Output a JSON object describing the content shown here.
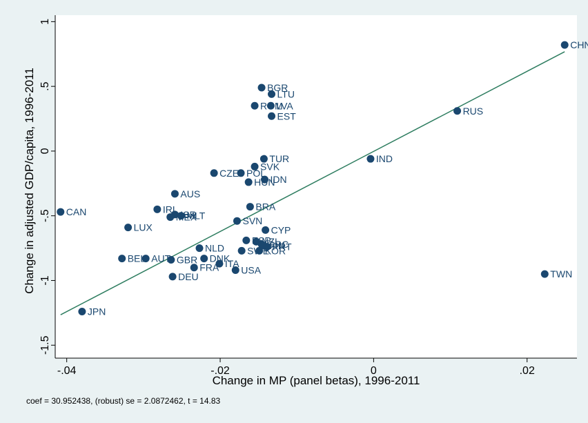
{
  "chart_data": {
    "type": "scatter",
    "xlabel": "Change in MP (panel betas), 1996-2011",
    "ylabel": "Change in adjusted GDP/capita, 1996-2011",
    "xlim": [
      -0.0415,
      0.0265
    ],
    "ylim": [
      -1.6,
      1.05
    ],
    "x_ticks": [
      -0.04,
      -0.02,
      0,
      0.02
    ],
    "x_tick_labels": [
      "-.04",
      "-.02",
      "0",
      ".02"
    ],
    "y_ticks": [
      1,
      0.5,
      0,
      -0.5,
      -1,
      -1.5
    ],
    "y_tick_labels": [
      "1",
      ".5",
      "0",
      "-.5",
      "-1",
      "-1.5"
    ],
    "grid": false,
    "colors": {
      "marker": "#1a476f",
      "fit_line": "#2e7d60",
      "plot_bg": "#ffffff",
      "outer_bg": "#eaf2f3"
    },
    "points": [
      {
        "label": "CHN",
        "x": 0.0249,
        "y": 0.82
      },
      {
        "label": "RUS",
        "x": 0.0109,
        "y": 0.31
      },
      {
        "label": "IND",
        "x": -0.0004,
        "y": -0.06
      },
      {
        "label": "TWN",
        "x": 0.0223,
        "y": -0.95
      },
      {
        "label": "BGR",
        "x": -0.0146,
        "y": 0.49
      },
      {
        "label": "LTU",
        "x": -0.0133,
        "y": 0.44
      },
      {
        "label": "ROM",
        "x": -0.0155,
        "y": 0.35
      },
      {
        "label": "LVA",
        "x": -0.0134,
        "y": 0.35
      },
      {
        "label": "EST",
        "x": -0.0133,
        "y": 0.27
      },
      {
        "label": "TUR",
        "x": -0.0143,
        "y": -0.06
      },
      {
        "label": "SVK",
        "x": -0.0155,
        "y": -0.12
      },
      {
        "label": "CZE",
        "x": -0.0208,
        "y": -0.17
      },
      {
        "label": "POL",
        "x": -0.0173,
        "y": -0.17
      },
      {
        "label": "IDN",
        "x": -0.0142,
        "y": -0.22
      },
      {
        "label": "HUN",
        "x": -0.0163,
        "y": -0.24
      },
      {
        "label": "AUS",
        "x": -0.0259,
        "y": -0.33
      },
      {
        "label": "BRA",
        "x": -0.0161,
        "y": -0.43
      },
      {
        "label": "CAN",
        "x": -0.0408,
        "y": -0.47
      },
      {
        "label": "IRL",
        "x": -0.0282,
        "y": -0.45
      },
      {
        "label": "ISR",
        "x": -0.0259,
        "y": -0.49
      },
      {
        "label": "MLT",
        "x": -0.0251,
        "y": -0.5
      },
      {
        "label": "MEX",
        "x": -0.0265,
        "y": -0.51
      },
      {
        "label": "SVN",
        "x": -0.0178,
        "y": -0.54
      },
      {
        "label": "LUX",
        "x": -0.032,
        "y": -0.59
      },
      {
        "label": "CYP",
        "x": -0.0141,
        "y": -0.61
      },
      {
        "label": "ESP",
        "x": -0.0166,
        "y": -0.69
      },
      {
        "label": "NZL",
        "x": -0.0153,
        "y": -0.7
      },
      {
        "label": "GRC",
        "x": -0.0146,
        "y": -0.72
      },
      {
        "label": "FIN",
        "x": -0.0143,
        "y": -0.73
      },
      {
        "label": "PRT",
        "x": -0.0139,
        "y": -0.74
      },
      {
        "label": "SWE",
        "x": -0.0172,
        "y": -0.77
      },
      {
        "label": "KOR",
        "x": -0.0149,
        "y": -0.77
      },
      {
        "label": "NLD",
        "x": -0.0227,
        "y": -0.75
      },
      {
        "label": "BEL",
        "x": -0.0328,
        "y": -0.83
      },
      {
        "label": "AUT",
        "x": -0.0297,
        "y": -0.83
      },
      {
        "label": "GBR",
        "x": -0.0264,
        "y": -0.84
      },
      {
        "label": "DNK",
        "x": -0.0221,
        "y": -0.83
      },
      {
        "label": "ITA",
        "x": -0.0201,
        "y": -0.87
      },
      {
        "label": "FRA",
        "x": -0.0234,
        "y": -0.9
      },
      {
        "label": "USA",
        "x": -0.018,
        "y": -0.92
      },
      {
        "label": "DEU",
        "x": -0.0262,
        "y": -0.97
      },
      {
        "label": "JPN",
        "x": -0.038,
        "y": -1.24
      }
    ],
    "fit_line": {
      "x": [
        -0.0408,
        0.0249
      ],
      "y": [
        -1.265,
        0.768
      ]
    },
    "note": "coef = 30.952438, (robust) se = 2.0872462, t = 14.83"
  }
}
